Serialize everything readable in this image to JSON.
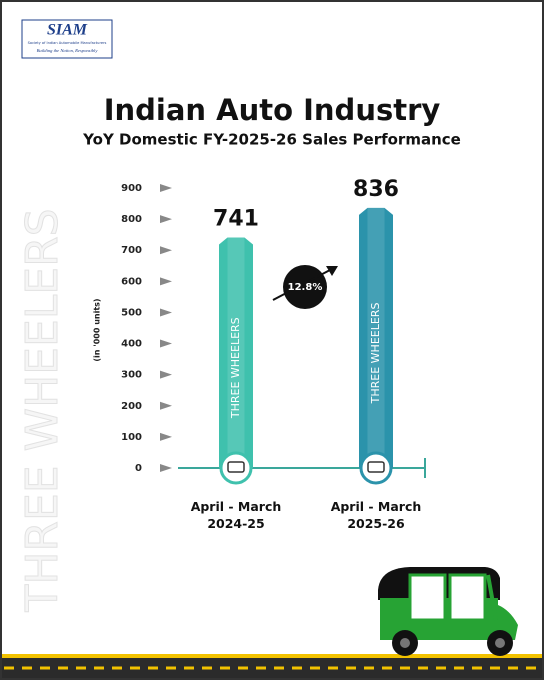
{
  "logo": {
    "name": "SIAM",
    "full_name": "Society of Indian Automobile Manufacturers",
    "tagline": "Building the Nation, Responsibly"
  },
  "chart_data": {
    "type": "bar",
    "title": "Indian Auto Industry",
    "subtitle": "YoY Domestic FY-2025-26 Sales Performance",
    "y_label": "(in '000 units)",
    "watermark": "THREE WHEELERS",
    "bar_label": "THREE WHEELERS",
    "categories": [
      "April - March\n2024-25",
      "April - March\n2025-26"
    ],
    "values": [
      741,
      836
    ],
    "colors": [
      "#3fc1ad",
      "#2b93ab"
    ],
    "growth_label": "12.8%",
    "ylim": [
      0,
      900
    ],
    "yticks": [
      0,
      100,
      200,
      300,
      400,
      500,
      600,
      700,
      800,
      900
    ]
  }
}
